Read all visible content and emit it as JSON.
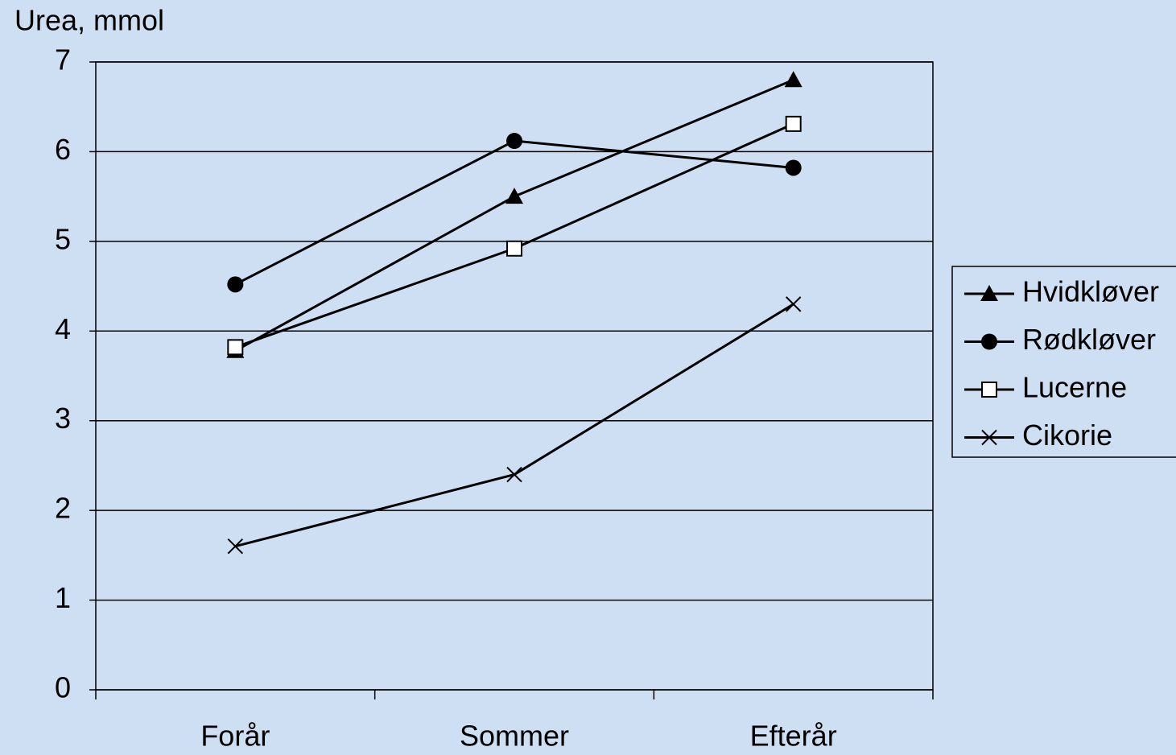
{
  "chart_data": {
    "type": "line",
    "y_label": "Urea, mmol",
    "categories": [
      "Forår",
      "Sommer",
      "Efterår"
    ],
    "series": [
      {
        "name": "Hvidkløver",
        "color": "#000000",
        "marker": "triangle",
        "values": [
          3.78,
          5.5,
          6.8
        ]
      },
      {
        "name": "Rødkløver",
        "color": "#000000",
        "marker": "circle",
        "values": [
          4.52,
          6.12,
          5.82
        ]
      },
      {
        "name": "Lucerne",
        "color": "#000000",
        "marker": "square",
        "values": [
          3.82,
          4.92,
          6.31
        ]
      },
      {
        "name": "Cikorie",
        "color": "#000000",
        "marker": "x",
        "values": [
          1.6,
          2.4,
          4.3
        ]
      }
    ],
    "ylim": [
      0,
      7
    ],
    "yticks": [
      0,
      1,
      2,
      3,
      4,
      5,
      6,
      7
    ],
    "grid": true,
    "legend": "right"
  }
}
